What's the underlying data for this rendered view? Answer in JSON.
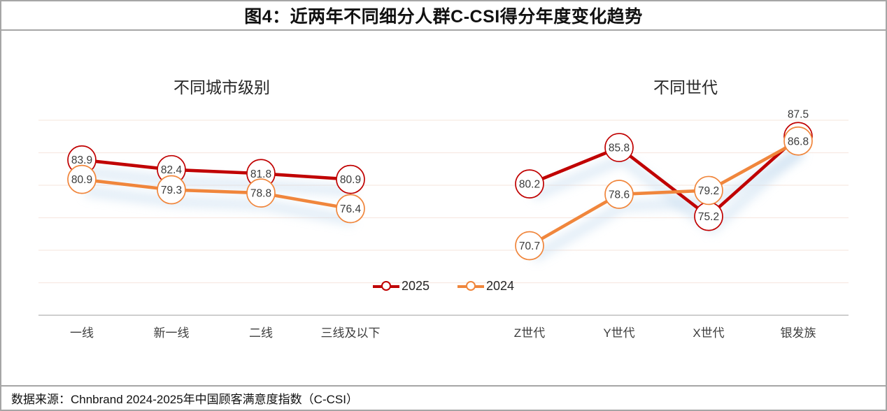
{
  "title": "图4：近两年不同细分人群C-CSI得分年度变化趋势",
  "source": "数据来源：Chnbrand 2024-2025年中国顾客满意度指数（C-CSI）",
  "legend": {
    "position": "bottom-center",
    "items": [
      {
        "label": "2025",
        "color": "#c00000"
      },
      {
        "label": "2024",
        "color": "#f0863c"
      }
    ]
  },
  "colors": {
    "series_2025": "#c00000",
    "series_2024": "#f0863c",
    "glow": "#c9def0",
    "gridline": "#f8e9e2",
    "axis_line": "#bfbfbf",
    "frame_border": "#a6a6a6",
    "data_label": "#3a3a3a",
    "axis_label": "#3d3d3d"
  },
  "chart_data": [
    {
      "type": "line",
      "title": "不同城市级别",
      "categories": [
        "一线",
        "新一线",
        "二线",
        "三线及以下"
      ],
      "series": [
        {
          "name": "2025",
          "color": "#c00000",
          "values": [
            83.9,
            82.4,
            81.8,
            80.9
          ]
        },
        {
          "name": "2024",
          "color": "#f0863c",
          "values": [
            80.9,
            79.3,
            78.8,
            76.4
          ]
        }
      ],
      "ylim": [
        60,
        90
      ],
      "grid": "horizontal",
      "marker": "open-circle-with-value"
    },
    {
      "type": "line",
      "title": "不同世代",
      "categories": [
        "Z世代",
        "Y世代",
        "X世代",
        "银发族"
      ],
      "series": [
        {
          "name": "2025",
          "color": "#c00000",
          "values": [
            80.2,
            85.8,
            75.2,
            87.5
          ],
          "label_above": [
            false,
            false,
            false,
            true
          ]
        },
        {
          "name": "2024",
          "color": "#f0863c",
          "values": [
            70.7,
            78.6,
            79.2,
            86.8
          ]
        }
      ],
      "ylim": [
        60,
        90
      ],
      "grid": "horizontal",
      "marker": "open-circle-with-value"
    }
  ]
}
